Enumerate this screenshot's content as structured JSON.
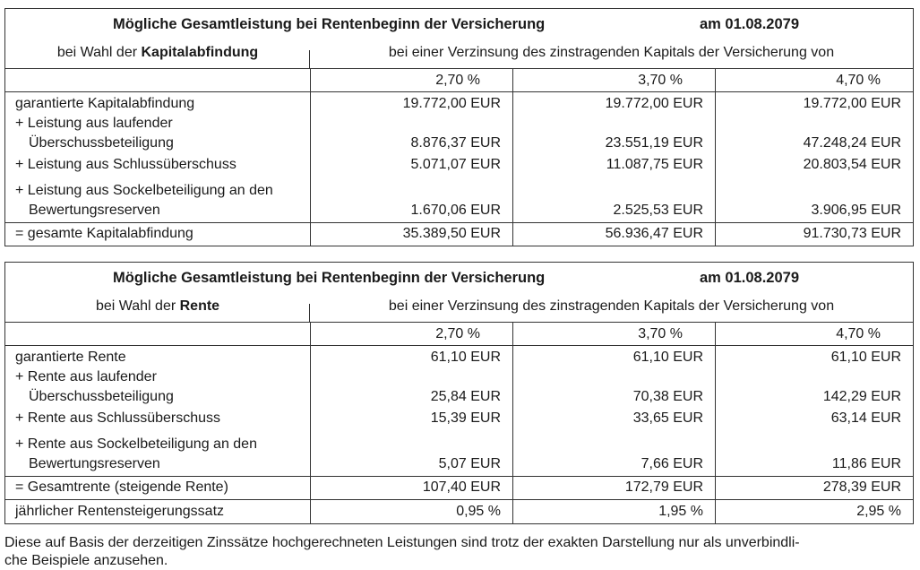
{
  "tables": [
    {
      "title": "Mögliche Gesamtleistung bei Rentenbeginn der Versicherung",
      "date": "am 01.08.2079",
      "choice_prefix": "bei Wahl der ",
      "choice_bold": "Kapitalabfindung",
      "interest_caption": "bei einer Verzinsung des zinstragenden Kapitals der Versicherung von",
      "rates": [
        "2,70 %",
        "3,70 %",
        "4,70 %"
      ],
      "rows": [
        {
          "label": "garantierte Kapitalabfindung",
          "values": [
            "19.772,00 EUR",
            "19.772,00 EUR",
            "19.772,00 EUR"
          ]
        },
        {
          "label": "+ Leistung aus laufender Überschussbeteiligung",
          "values": [
            "8.876,37 EUR",
            "23.551,19 EUR",
            "47.248,24 EUR"
          ]
        },
        {
          "label": "+ Leistung aus Schlussüberschuss",
          "values": [
            "5.071,07 EUR",
            "11.087,75 EUR",
            "20.803,54 EUR"
          ]
        },
        {
          "label": "+ Leistung aus Sockelbeteiligung an den Bewertungsreserven",
          "values": [
            "1.670,06 EUR",
            "2.525,53 EUR",
            "3.906,95 EUR"
          ]
        },
        {
          "label": "= gesamte Kapitalabfindung",
          "values": [
            "35.389,50 EUR",
            "56.936,47 EUR",
            "91.730,73 EUR"
          ]
        }
      ]
    },
    {
      "title": "Mögliche Gesamtleistung bei Rentenbeginn der Versicherung",
      "date": "am 01.08.2079",
      "choice_prefix": "bei Wahl der ",
      "choice_bold": "Rente",
      "interest_caption": "bei einer Verzinsung des zinstragenden Kapitals der Versicherung von",
      "rates": [
        "2,70 %",
        "3,70 %",
        "4,70 %"
      ],
      "rows": [
        {
          "label": "garantierte Rente",
          "values": [
            "61,10 EUR",
            "61,10 EUR",
            "61,10 EUR"
          ]
        },
        {
          "label": "+ Rente aus laufender Überschussbeteiligung",
          "values": [
            "25,84 EUR",
            "70,38 EUR",
            "142,29 EUR"
          ]
        },
        {
          "label": "+ Rente aus Schlussüberschuss",
          "values": [
            "15,39 EUR",
            "33,65 EUR",
            "63,14 EUR"
          ]
        },
        {
          "label": "+ Rente aus Sockelbeteiligung an den Bewertungsreserven",
          "values": [
            "5,07 EUR",
            "7,66 EUR",
            "11,86 EUR"
          ]
        },
        {
          "label": "= Gesamtrente (steigende Rente)",
          "values": [
            "107,40 EUR",
            "172,79 EUR",
            "278,39 EUR"
          ]
        },
        {
          "label": "jährlicher Rentensteigerungssatz",
          "values": [
            "0,95 %",
            "1,95 %",
            "2,95 %"
          ]
        }
      ]
    }
  ],
  "footer": {
    "line1": "Diese auf Basis der derzeitigen Zinssätze hochgerechneten Leistungen sind trotz der exakten Darstellung nur als unverbindli-",
    "line2": "che Beispiele anzusehen."
  }
}
